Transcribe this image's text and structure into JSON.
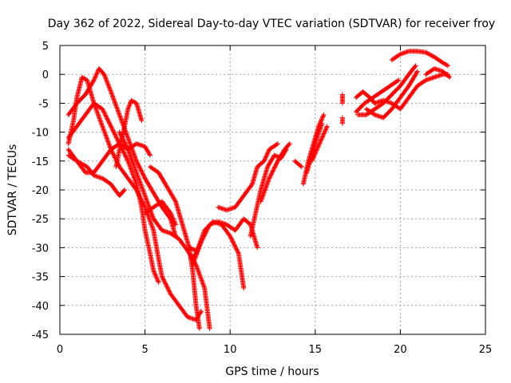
{
  "chart_data": {
    "type": "scatter",
    "title": "Day 362 of 2022, Sidereal Day-to-day VTEC variation (SDTVAR) for receiver froy",
    "xlabel": "GPS time / hours",
    "ylabel": "SDTVAR / TECUs",
    "xlim": [
      0,
      25
    ],
    "ylim": [
      -45,
      5
    ],
    "xticks": [
      0,
      5,
      10,
      15,
      20,
      25
    ],
    "yticks": [
      5,
      0,
      -5,
      -10,
      -15,
      -20,
      -25,
      -30,
      -35,
      -40,
      -45
    ],
    "grid": true,
    "marker": "plus",
    "series_color": "#ff0000",
    "series": [
      {
        "tracks": [
          [
            [
              0.5,
              -13
            ],
            [
              1.0,
              -15
            ],
            [
              1.5,
              -17
            ],
            [
              2.0,
              -17
            ],
            [
              2.5,
              -15
            ],
            [
              3.0,
              -13
            ],
            [
              3.5,
              -12
            ],
            [
              4.0,
              -13
            ],
            [
              4.5,
              -17
            ],
            [
              5.0,
              -21
            ],
            [
              5.5,
              -25
            ],
            [
              6.0,
              -27
            ],
            [
              6.5,
              -27.5
            ],
            [
              7.0,
              -28.5
            ],
            [
              7.5,
              -30.5
            ],
            [
              8.0,
              -33
            ],
            [
              8.5,
              -37
            ],
            [
              8.8,
              -44
            ]
          ],
          [
            [
              0.5,
              -14
            ],
            [
              1.0,
              -15
            ],
            [
              1.6,
              -16
            ],
            [
              2.0,
              -17.5
            ],
            [
              2.5,
              -18
            ],
            [
              3.0,
              -19
            ],
            [
              3.5,
              -21
            ],
            [
              3.8,
              -20
            ]
          ],
          [
            [
              0.5,
              -12
            ],
            [
              0.8,
              -8
            ],
            [
              1.0,
              -4
            ],
            [
              1.3,
              -0.5
            ],
            [
              1.6,
              -1
            ],
            [
              2.0,
              -5
            ],
            [
              2.5,
              -9
            ],
            [
              3.0,
              -13
            ],
            [
              3.5,
              -16
            ],
            [
              4.0,
              -18
            ],
            [
              4.5,
              -20
            ],
            [
              5.0,
              -23
            ],
            [
              5.5,
              -27
            ],
            [
              5.8,
              -32
            ],
            [
              6.0,
              -35
            ],
            [
              6.5,
              -38
            ],
            [
              7.0,
              -40
            ],
            [
              7.5,
              -42
            ],
            [
              8.0,
              -42.5
            ],
            [
              8.3,
              -41
            ]
          ],
          [
            [
              0.5,
              -11
            ],
            [
              1.0,
              -9
            ],
            [
              1.5,
              -7
            ],
            [
              2.0,
              -5
            ],
            [
              2.5,
              -6
            ],
            [
              3.0,
              -9
            ],
            [
              3.5,
              -12
            ],
            [
              4.0,
              -15
            ],
            [
              4.5,
              -19
            ],
            [
              4.8,
              -23
            ],
            [
              5.0,
              -27
            ],
            [
              5.3,
              -31
            ],
            [
              5.5,
              -34
            ],
            [
              5.8,
              -36
            ]
          ],
          [
            [
              0.5,
              -7
            ],
            [
              1.0,
              -5
            ],
            [
              1.5,
              -3.5
            ],
            [
              2.0,
              -1
            ],
            [
              2.3,
              1
            ],
            [
              2.6,
              0
            ],
            [
              3.0,
              -3
            ],
            [
              3.5,
              -7
            ],
            [
              4.0,
              -11
            ],
            [
              4.5,
              -15
            ],
            [
              5.0,
              -18
            ],
            [
              5.5,
              -20.5
            ],
            [
              6.0,
              -23
            ],
            [
              6.5,
              -25
            ],
            [
              6.8,
              -28
            ]
          ],
          [
            [
              3.3,
              -16
            ],
            [
              3.5,
              -13
            ],
            [
              3.8,
              -9
            ],
            [
              4.0,
              -6
            ],
            [
              4.2,
              -4.5
            ],
            [
              4.5,
              -5
            ],
            [
              4.8,
              -8
            ]
          ],
          [
            [
              3.5,
              -10
            ],
            [
              4.0,
              -13
            ],
            [
              4.5,
              -12
            ],
            [
              5.0,
              -12.5
            ],
            [
              5.3,
              -14
            ]
          ],
          [
            [
              5.0,
              -24
            ],
            [
              5.5,
              -23
            ],
            [
              6.0,
              -22
            ],
            [
              6.5,
              -24
            ],
            [
              6.8,
              -26
            ]
          ],
          [
            [
              5.3,
              -16
            ],
            [
              5.8,
              -17
            ],
            [
              6.2,
              -19
            ],
            [
              6.8,
              -22
            ],
            [
              7.2,
              -26
            ],
            [
              7.6,
              -30
            ],
            [
              8.0,
              -30.5
            ]
          ],
          [
            [
              7.6,
              -30
            ],
            [
              7.8,
              -34
            ],
            [
              8.0,
              -40
            ],
            [
              8.2,
              -44
            ]
          ],
          [
            [
              7.7,
              -32
            ],
            [
              8.0,
              -31
            ],
            [
              8.5,
              -27
            ],
            [
              9.0,
              -25.5
            ],
            [
              9.5,
              -26
            ],
            [
              10.0,
              -28
            ],
            [
              10.5,
              -31
            ],
            [
              10.8,
              -37
            ]
          ],
          [
            [
              7.8,
              -33
            ],
            [
              8.3,
              -29
            ],
            [
              8.8,
              -26
            ],
            [
              9.3,
              -25.5
            ],
            [
              9.8,
              -26
            ],
            [
              10.3,
              -27
            ],
            [
              10.8,
              -25
            ],
            [
              11.2,
              -26
            ],
            [
              11.6,
              -30
            ]
          ],
          [
            [
              9.3,
              -23
            ],
            [
              9.8,
              -23.5
            ],
            [
              10.3,
              -23
            ],
            [
              10.8,
              -21
            ],
            [
              11.3,
              -19
            ],
            [
              11.6,
              -16
            ],
            [
              12.0,
              -15
            ],
            [
              12.3,
              -13
            ],
            [
              12.8,
              -12
            ]
          ],
          [
            [
              11.2,
              -28
            ],
            [
              11.5,
              -24
            ],
            [
              11.8,
              -20
            ],
            [
              12.2,
              -16
            ],
            [
              12.6,
              -14
            ],
            [
              13.0,
              -14.5
            ],
            [
              13.3,
              -13
            ]
          ],
          [
            [
              11.8,
              -22
            ],
            [
              12.3,
              -18
            ],
            [
              12.8,
              -15
            ],
            [
              13.2,
              -13
            ],
            [
              13.5,
              -12
            ]
          ],
          [
            [
              13.8,
              -15
            ],
            [
              14.0,
              -15.5
            ],
            [
              14.2,
              -16
            ]
          ],
          [
            [
              14.3,
              -19
            ],
            [
              14.6,
              -15
            ],
            [
              14.9,
              -12
            ],
            [
              15.2,
              -9
            ],
            [
              15.5,
              -7
            ]
          ],
          [
            [
              14.5,
              -17
            ],
            [
              14.8,
              -14
            ],
            [
              15.1,
              -11
            ],
            [
              15.4,
              -8.5
            ]
          ],
          [
            [
              14.8,
              -15
            ],
            [
              15.1,
              -13
            ],
            [
              15.4,
              -11
            ],
            [
              15.7,
              -9
            ]
          ],
          [
            [
              16.6,
              -3.5
            ],
            [
              16.6,
              -5
            ]
          ],
          [
            [
              16.6,
              -7.5
            ],
            [
              16.6,
              -8.5
            ]
          ],
          [
            [
              17.4,
              -4
            ],
            [
              17.8,
              -3
            ],
            [
              18.2,
              -4
            ],
            [
              18.5,
              -5
            ]
          ],
          [
            [
              17.4,
              -6.5
            ],
            [
              17.9,
              -5
            ],
            [
              18.4,
              -4
            ],
            [
              18.9,
              -3
            ],
            [
              19.4,
              -2
            ],
            [
              19.9,
              -1
            ]
          ],
          [
            [
              17.5,
              -7
            ],
            [
              18.0,
              -7
            ],
            [
              18.5,
              -6
            ],
            [
              19.0,
              -5
            ],
            [
              19.5,
              -3.5
            ],
            [
              20.0,
              -2
            ],
            [
              20.5,
              0
            ],
            [
              20.9,
              1.5
            ]
          ],
          [
            [
              18.0,
              -6
            ],
            [
              18.5,
              -7
            ],
            [
              19.0,
              -7.5
            ],
            [
              19.5,
              -6
            ],
            [
              20.0,
              -4
            ],
            [
              20.5,
              -2
            ],
            [
              21.0,
              0.5
            ]
          ],
          [
            [
              18.5,
              -5
            ],
            [
              19.0,
              -4.5
            ],
            [
              19.5,
              -5
            ],
            [
              20.0,
              -6
            ],
            [
              20.5,
              -4
            ],
            [
              21.0,
              -2
            ],
            [
              21.5,
              -1
            ],
            [
              22.0,
              -0.5
            ],
            [
              22.5,
              0
            ],
            [
              22.8,
              0
            ]
          ],
          [
            [
              19.5,
              2.5
            ],
            [
              20.0,
              3.5
            ],
            [
              20.5,
              4
            ],
            [
              21.0,
              4
            ],
            [
              21.5,
              3.8
            ],
            [
              22.0,
              3
            ],
            [
              22.5,
              2
            ],
            [
              22.8,
              1.5
            ]
          ],
          [
            [
              21.5,
              0
            ],
            [
              22.0,
              1
            ],
            [
              22.5,
              0.5
            ],
            [
              22.9,
              -0.5
            ]
          ]
        ]
      }
    ]
  }
}
